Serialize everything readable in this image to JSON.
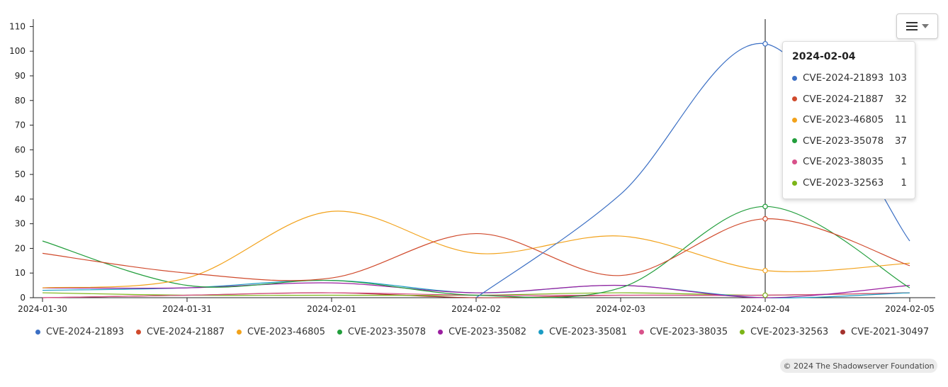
{
  "chart_data": {
    "type": "line",
    "x": [
      "2024-01-30",
      "2024-01-31",
      "2024-02-01",
      "2024-02-02",
      "2024-02-03",
      "2024-02-04",
      "2024-02-05"
    ],
    "ylim": [
      0,
      113
    ],
    "yticks": [
      0,
      10,
      20,
      30,
      40,
      50,
      60,
      70,
      80,
      90,
      100,
      110
    ],
    "grid": false,
    "legend_position": "bottom",
    "series": [
      {
        "name": "CVE-2024-21893",
        "color": "#3b6fc4",
        "values": [
          null,
          null,
          null,
          0,
          42,
          103,
          23
        ]
      },
      {
        "name": "CVE-2024-21887",
        "color": "#d04a2c",
        "values": [
          18,
          10,
          8,
          26,
          9,
          32,
          13
        ]
      },
      {
        "name": "CVE-2023-46805",
        "color": "#f2a21b",
        "values": [
          4,
          8,
          35,
          18,
          25,
          11,
          14
        ]
      },
      {
        "name": "CVE-2023-35078",
        "color": "#229e3c",
        "values": [
          23,
          5,
          7,
          1,
          4,
          37,
          4
        ]
      },
      {
        "name": "CVE-2023-35082",
        "color": "#9b1fa0",
        "values": [
          4,
          4,
          6,
          2,
          5,
          0,
          5
        ]
      },
      {
        "name": "CVE-2023-35081",
        "color": "#1a9cc4",
        "values": [
          3,
          4,
          7,
          2,
          5,
          0,
          2
        ]
      },
      {
        "name": "CVE-2023-38035",
        "color": "#d8518a",
        "values": [
          0,
          1,
          2,
          1,
          1,
          1,
          2
        ]
      },
      {
        "name": "CVE-2023-32563",
        "color": "#7cb518",
        "values": [
          2,
          1,
          1,
          1,
          2,
          1,
          2
        ]
      },
      {
        "name": "CVE-2021-30497",
        "color": "#a4322d",
        "values": [
          0,
          1,
          2,
          0,
          1,
          1,
          2
        ]
      }
    ],
    "hover_x": "2024-02-04"
  },
  "tooltip": {
    "title": "2024-02-04",
    "rows": [
      {
        "name": "CVE-2024-21893",
        "value": "103",
        "color": "#3b6fc4"
      },
      {
        "name": "CVE-2024-21887",
        "value": "32",
        "color": "#d04a2c"
      },
      {
        "name": "CVE-2023-46805",
        "value": "11",
        "color": "#f2a21b"
      },
      {
        "name": "CVE-2023-35078",
        "value": "37",
        "color": "#229e3c"
      },
      {
        "name": "CVE-2023-38035",
        "value": "1",
        "color": "#d8518a"
      },
      {
        "name": "CVE-2023-32563",
        "value": "1",
        "color": "#7cb518"
      }
    ]
  },
  "menu": {
    "icon": "hamburger-menu-icon"
  },
  "copyright": "© 2024 The Shadowserver Foundation"
}
